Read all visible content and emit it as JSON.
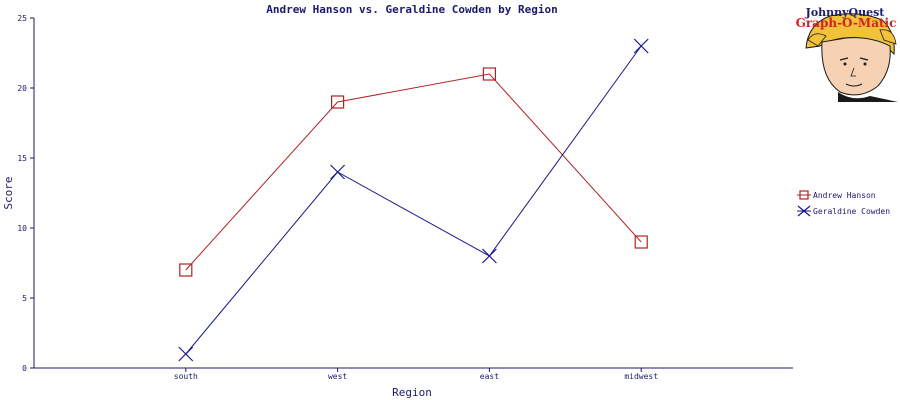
{
  "chart_data": {
    "type": "line",
    "title": "Andrew Hanson vs. Geraldine Cowden by Region",
    "xlabel": "Region",
    "ylabel": "Score",
    "categories": [
      "south",
      "west",
      "east",
      "midwest"
    ],
    "ylim": [
      0,
      25
    ],
    "yticks": [
      0,
      5,
      10,
      15,
      20,
      25
    ],
    "grid": false,
    "legend_position": "right",
    "series": [
      {
        "name": "Andrew Hanson",
        "values": [
          7,
          19,
          21,
          9
        ],
        "color": "#b22222",
        "marker": "square"
      },
      {
        "name": "Geraldine Cowden",
        "values": [
          1,
          14,
          8,
          23
        ],
        "color": "#1a1a8c",
        "marker": "x"
      }
    ]
  },
  "logo": {
    "line1": "JohnnyQuest",
    "line2": "Graph-O-Matic"
  }
}
